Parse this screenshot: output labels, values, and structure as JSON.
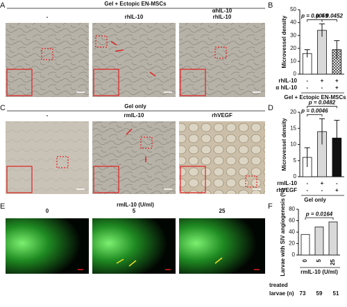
{
  "panels": [
    {
      "label": "A",
      "header": "Gel + Ectopic EN-MSCs",
      "columns": [
        [
          "-"
        ],
        [
          "rhIL-10"
        ],
        [
          "αhIL-10",
          "rhIL-10"
        ]
      ]
    },
    {
      "label": "C",
      "header": "Gel only",
      "columns": [
        [
          "-"
        ],
        [
          "rmIL-10"
        ],
        [
          "rhVEGF"
        ]
      ]
    },
    {
      "label": "E",
      "header": "rmIL-10 (U/ml)",
      "columns": [
        [
          "0"
        ],
        [
          "5"
        ],
        [
          "25"
        ]
      ]
    }
  ],
  "chart_data": [
    {
      "type": "bar",
      "panel": "B",
      "ylabel": "Microvessel density",
      "ylim": [
        0,
        50
      ],
      "yticks": [
        0,
        10,
        20,
        30,
        40,
        50
      ],
      "values": [
        16,
        34,
        19
      ],
      "errors": [
        3,
        5,
        7
      ],
      "fills": [
        "#ffffff",
        "#d9d9d9",
        "crosshatch"
      ],
      "annotations": [
        {
          "text": "p = 0.0059",
          "from": 0,
          "to": 1
        },
        {
          "text": "p = 0.0452",
          "from": 1,
          "to": 2
        }
      ],
      "conditions": [
        {
          "name": "rhIL-10",
          "values": [
            "-",
            "+",
            "+"
          ]
        },
        {
          "name": "α hIL-10",
          "values": [
            "-",
            "-",
            "+"
          ]
        }
      ],
      "group_label": "Gel + Ectopic EN-MSCs"
    },
    {
      "type": "bar",
      "panel": "D",
      "ylabel": "Microvessel density",
      "ylim": [
        0,
        20
      ],
      "yticks": [
        0,
        5,
        10,
        15,
        20
      ],
      "values": [
        6,
        14,
        12
      ],
      "errors": [
        3,
        4,
        5.5
      ],
      "fills": [
        "#ffffff",
        "#d9d9d9",
        "#111111"
      ],
      "annotations": [
        {
          "text": "p = 0.0046",
          "from": 0,
          "to": 1
        },
        {
          "text": "p = 0.0482",
          "from": 0,
          "to": 2
        }
      ],
      "conditions": [
        {
          "name": "rmIL-10",
          "values": [
            "-",
            "+",
            "-"
          ]
        },
        {
          "name": "rhVEGF",
          "values": [
            "-",
            "-",
            "+"
          ]
        }
      ],
      "group_label": "Gel only"
    },
    {
      "type": "bar",
      "panel": "F",
      "ylabel": "Larvae with SIV angiogenesis (%)",
      "ylim": [
        0,
        80
      ],
      "yticks": [
        0,
        20,
        40,
        60,
        80
      ],
      "categories": [
        "0",
        "5",
        "25"
      ],
      "xlabel": "rmIL-10 (U/ml)",
      "values": [
        36,
        49,
        58
      ],
      "fills": [
        "#ffffff",
        "#d9d9d9",
        "#d9d9d9"
      ],
      "annotations": [
        {
          "text": "p = 0.0164",
          "from": 0,
          "to": 2
        }
      ],
      "count_label": [
        "treated",
        "larvae (n)"
      ],
      "counts": [
        73,
        59,
        51
      ]
    }
  ]
}
